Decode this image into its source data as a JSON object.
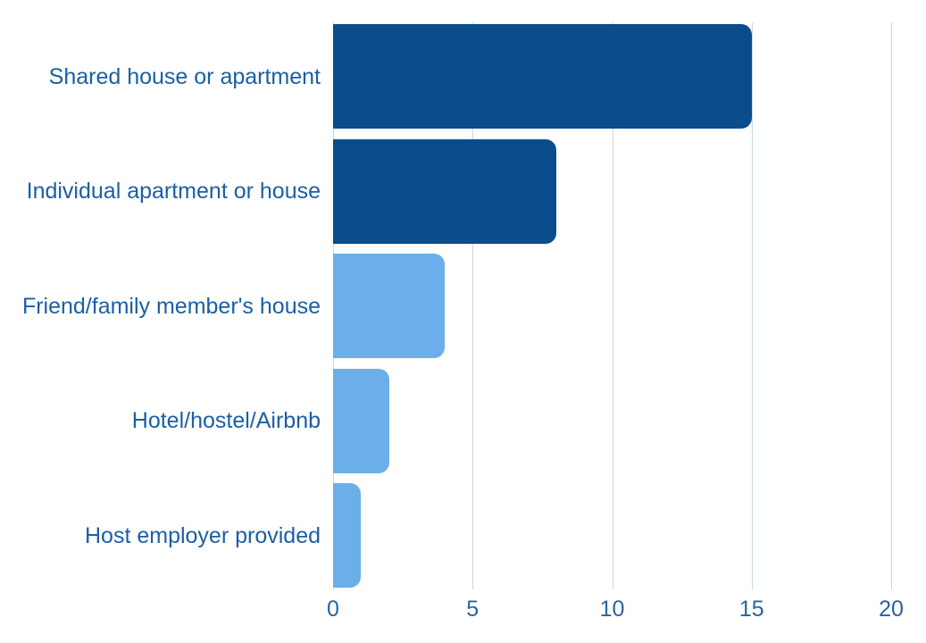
{
  "chart_data": {
    "type": "bar",
    "orientation": "horizontal",
    "title": "",
    "xlabel": "",
    "ylabel": "",
    "categories": [
      "Shared house or apartment",
      "Individual apartment or house",
      "Friend/family member's house",
      "Hotel/hostel/Airbnb",
      "Host employer provided"
    ],
    "values": [
      15,
      8,
      4,
      2,
      1
    ],
    "bar_colors": [
      "#0a4c8c",
      "#0a4c8c",
      "#6caee9",
      "#6caee9",
      "#6caee9"
    ],
    "x_ticks": [
      0,
      5,
      10,
      15,
      20
    ],
    "xlim": [
      0,
      20
    ],
    "grid": true,
    "legend": "none",
    "palette": {
      "dark_blue": "#0a4c8c",
      "light_blue": "#6caee9",
      "label_text": "#1b5fa5",
      "tick_text": "#28649f",
      "gridline": "#c9d9e6",
      "background": "#ffffff"
    }
  }
}
